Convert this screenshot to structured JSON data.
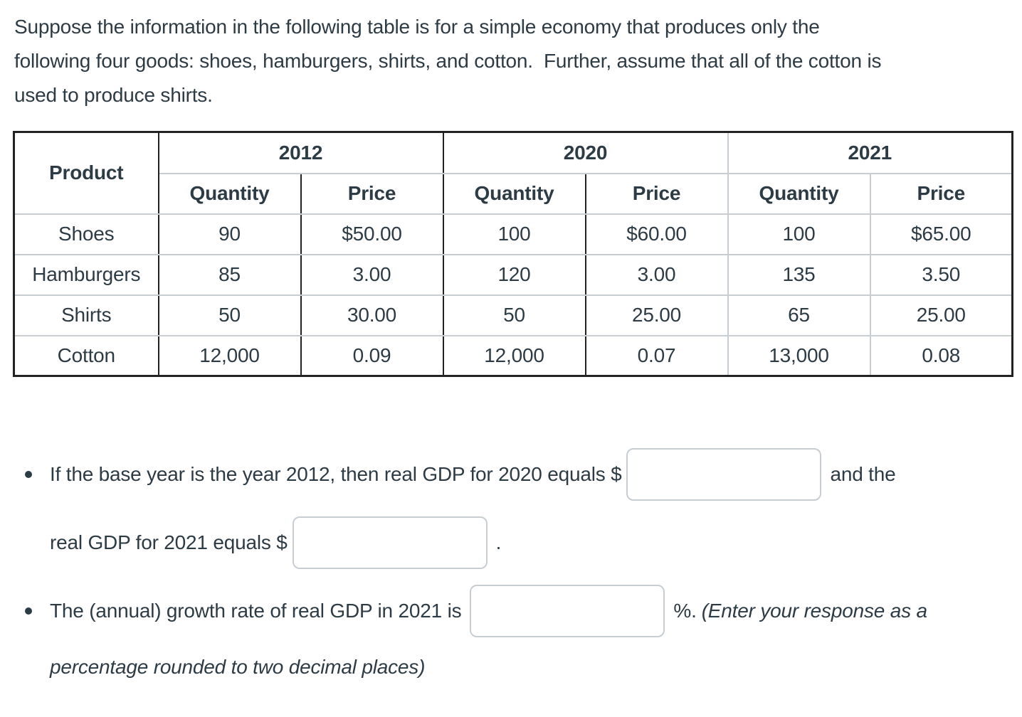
{
  "intro": {
    "text": "Suppose the information in the following table is for a simple economy that produces only the\nfollowing four goods: shoes, hamburgers, shirts, and cotton.  Further, assume that all of the cotton is\nused to produce shirts."
  },
  "table": {
    "product_header": "Product",
    "years": [
      "2012",
      "2020",
      "2021"
    ],
    "col_headers": [
      "Quantity",
      "Price",
      "Quantity",
      "Price",
      "Quantity",
      "Price"
    ],
    "rows": [
      {
        "product": "Shoes",
        "cells": [
          "90",
          "$50.00",
          "100",
          "$60.00",
          "100",
          "$65.00"
        ]
      },
      {
        "product": "Hamburgers",
        "cells": [
          "85",
          "3.00",
          "120",
          "3.00",
          "135",
          "3.50"
        ]
      },
      {
        "product": "Shirts",
        "cells": [
          "50",
          "30.00",
          "50",
          "25.00",
          "65",
          "25.00"
        ]
      },
      {
        "product": "Cotton",
        "cells": [
          "12,000",
          "0.09",
          "12,000",
          "0.07",
          "13,000",
          "0.08"
        ]
      }
    ]
  },
  "chart_data": {
    "type": "table",
    "title": "",
    "columns": [
      "Product",
      "2012 Quantity",
      "2012 Price",
      "2020 Quantity",
      "2020 Price",
      "2021 Quantity",
      "2021 Price"
    ],
    "rows": [
      [
        "Shoes",
        90,
        50.0,
        100,
        60.0,
        100,
        65.0
      ],
      [
        "Hamburgers",
        85,
        3.0,
        120,
        3.0,
        135,
        3.5
      ],
      [
        "Shirts",
        50,
        30.0,
        50,
        25.0,
        65,
        25.0
      ],
      [
        "Cotton",
        12000,
        0.09,
        12000,
        0.07,
        13000,
        0.08
      ]
    ]
  },
  "questions": {
    "q1": {
      "line1_pre": "If the base year is the year 2012, then real GDP for 2020 equals $",
      "input_2020_value": "",
      "line1_post": "and the",
      "line2_pre": "real GDP for 2021 equals $",
      "input_2021_value": "",
      "line2_post": "."
    },
    "q2": {
      "line1_pre": "The (annual) growth rate of real GDP in 2021 is",
      "input_growth_value": "",
      "line1_mid": "%.",
      "line1_italic": "(Enter your response as a",
      "line2_italic": "percentage rounded to two decimal places)"
    }
  },
  "colors": {
    "text": "#2D3B45",
    "border_dark": "#222222",
    "border_light": "#C7CDD1",
    "input_border": "#C7CDD1"
  }
}
